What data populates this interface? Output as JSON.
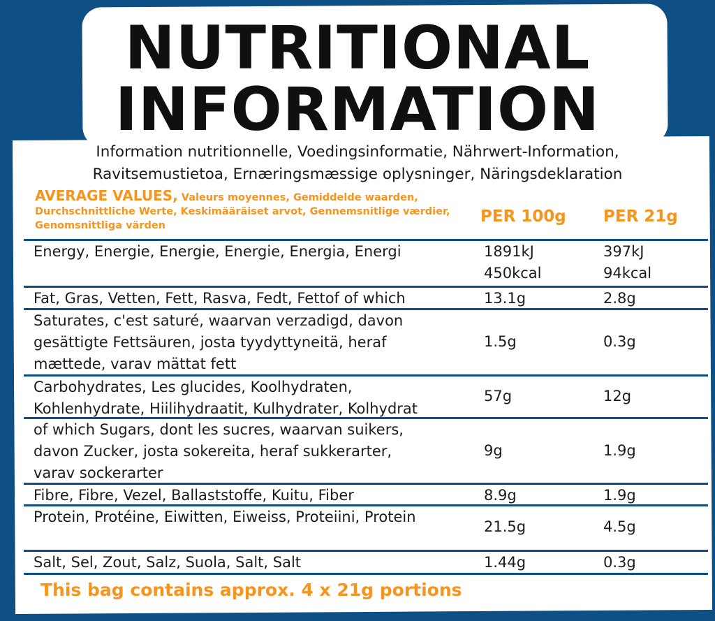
{
  "title": {
    "line1": "NUTRITIONAL",
    "line2": "INFORMATION"
  },
  "subtitle": {
    "line1": "Information nutritionnelle, Voedingsinformatie, Nährwert-Information,",
    "line2": "Ravitsemustietoa, Ernæringsmæssige oplysninger, Näringsdeklaration"
  },
  "header": {
    "average_main": "AVERAGE VALUES,",
    "average_rest": "Valeurs moyennes, Gemiddelde waarden, Durchschnittliche Werte, Keskimääräiset arvot, Gennemsnitlige værdier, Genomsnittliga värden",
    "col1": "PER 100g",
    "col2": "PER 21g"
  },
  "rows": [
    {
      "label": [
        "Energy, Energie, Energie, Energie, Energia, Energi"
      ],
      "per100": [
        "1891kJ",
        "450kcal"
      ],
      "per21": [
        "397kJ",
        "94kcal"
      ]
    },
    {
      "label": [
        "Fat, Gras, Vetten, Fett, Rasva, Fedt, Fettof of which"
      ],
      "per100": [
        "13.1g"
      ],
      "per21": [
        "2.8g"
      ]
    },
    {
      "label": [
        "Saturates, c'est saturé, waarvan verzadigd, davon",
        "gesättigte Fettsäuren, josta tyydyttyneitä, heraf",
        "mættede, varav mättat fett"
      ],
      "per100": [
        "1.5g"
      ],
      "per21": [
        "0.3g"
      ]
    },
    {
      "label": [
        "Carbohydrates, Les glucides, Koolhydraten,",
        "Kohlenhydrate, Hiilihydraatit, Kulhydrater, Kolhydrat"
      ],
      "per100": [
        "57g"
      ],
      "per21": [
        "12g"
      ]
    },
    {
      "label": [
        "of which Sugars, dont les sucres, waarvan suikers,",
        "davon Zucker, josta sokereita, heraf sukkerarter,",
        "varav sockerarter"
      ],
      "per100": [
        "9g"
      ],
      "per21": [
        "1.9g"
      ]
    },
    {
      "label": [
        "Fibre, Fibre, Vezel, Ballaststoffe, Kuitu, Fiber"
      ],
      "per100": [
        "8.9g"
      ],
      "per21": [
        "1.9g"
      ]
    },
    {
      "label": [
        "Protein, Protéine, Eiwitten, Eiweiss, Proteiini, Protein"
      ],
      "per100": [
        "21.5g"
      ],
      "per21": [
        "4.5g"
      ]
    },
    {
      "label": [
        "Salt, Sel, Zout, Salz, Suola, Salt, Salt"
      ],
      "per100": [
        "1.44g"
      ],
      "per21": [
        "0.3g"
      ]
    }
  ],
  "footer": "This bag contains approx. 4 x 21g portions",
  "colors": {
    "background": "#0e4f85",
    "accent": "#f7941d",
    "text": "#1c1c1c"
  }
}
